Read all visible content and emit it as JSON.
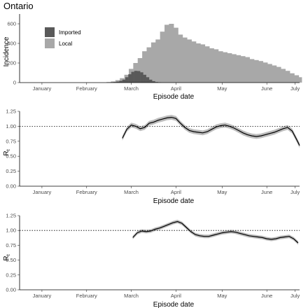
{
  "chart_data": [
    {
      "type": "bar",
      "title": "Ontario",
      "xlabel": "Episode date",
      "ylabel": "Incidence",
      "x_ticks": [
        "January",
        "February",
        "March",
        "April",
        "May",
        "June",
        "July"
      ],
      "ylim": [
        0,
        700
      ],
      "y_ticks": [
        0,
        200,
        400,
        600
      ],
      "grid": false,
      "legend_position": "top-left",
      "x_dates_start": "2020-01-01",
      "x_dates_end": "2020-07-07",
      "series": [
        {
          "name": "Imported",
          "color": "#595959",
          "dates": [
            "2020-03-01",
            "2020-03-03",
            "2020-03-05",
            "2020-03-07",
            "2020-03-09",
            "2020-03-11",
            "2020-03-13",
            "2020-03-15",
            "2020-03-17",
            "2020-03-19",
            "2020-03-21",
            "2020-03-23",
            "2020-03-25",
            "2020-03-27",
            "2020-03-29",
            "2020-03-31",
            "2020-04-02",
            "2020-04-04"
          ],
          "values": [
            2,
            4,
            6,
            10,
            18,
            30,
            55,
            85,
            110,
            120,
            118,
            105,
            80,
            55,
            30,
            15,
            6,
            3
          ]
        },
        {
          "name": "Local",
          "color": "#a8a8a8",
          "dates": [
            "2020-03-01",
            "2020-03-04",
            "2020-03-07",
            "2020-03-10",
            "2020-03-13",
            "2020-03-16",
            "2020-03-19",
            "2020-03-22",
            "2020-03-25",
            "2020-03-28",
            "2020-03-31",
            "2020-04-03",
            "2020-04-06",
            "2020-04-09",
            "2020-04-12",
            "2020-04-15",
            "2020-04-18",
            "2020-04-21",
            "2020-04-24",
            "2020-04-27",
            "2020-04-30",
            "2020-05-03",
            "2020-05-06",
            "2020-05-09",
            "2020-05-12",
            "2020-05-15",
            "2020-05-18",
            "2020-05-21",
            "2020-05-24",
            "2020-05-27",
            "2020-05-30",
            "2020-06-02",
            "2020-06-05",
            "2020-06-08",
            "2020-06-11",
            "2020-06-14",
            "2020-06-17",
            "2020-06-20",
            "2020-06-23",
            "2020-06-26",
            "2020-06-29",
            "2020-07-02",
            "2020-07-05",
            "2020-07-07"
          ],
          "values": [
            5,
            12,
            25,
            45,
            80,
            140,
            200,
            250,
            320,
            360,
            410,
            440,
            520,
            590,
            600,
            560,
            490,
            460,
            440,
            420,
            400,
            390,
            370,
            350,
            340,
            320,
            310,
            300,
            290,
            280,
            270,
            260,
            240,
            230,
            220,
            205,
            190,
            175,
            160,
            140,
            120,
            95,
            75,
            55
          ]
        }
      ]
    },
    {
      "type": "line",
      "xlabel": "Episode date",
      "ylabel": "R",
      "ylabel_sub": "t",
      "x_ticks": [
        "January",
        "February",
        "March",
        "April",
        "May",
        "June",
        "July"
      ],
      "ylim": [
        0,
        1.25
      ],
      "y_ticks": [
        "0.00",
        "0.25",
        "0.50",
        "0.75",
        "1.00",
        "1.25"
      ],
      "reference_line": 1.0,
      "grid": false,
      "series": [
        {
          "dates": [
            "2020-03-10",
            "2020-03-13",
            "2020-03-16",
            "2020-03-19",
            "2020-03-22",
            "2020-03-25",
            "2020-03-28",
            "2020-03-31",
            "2020-04-03",
            "2020-04-06",
            "2020-04-09",
            "2020-04-12",
            "2020-04-15",
            "2020-04-18",
            "2020-04-21",
            "2020-04-24",
            "2020-04-27",
            "2020-04-30",
            "2020-05-03",
            "2020-05-06",
            "2020-05-09",
            "2020-05-12",
            "2020-05-15",
            "2020-05-18",
            "2020-05-21",
            "2020-05-24",
            "2020-05-27",
            "2020-05-30",
            "2020-06-02",
            "2020-06-05",
            "2020-06-08",
            "2020-06-11",
            "2020-06-14",
            "2020-06-17",
            "2020-06-20",
            "2020-06-23",
            "2020-06-26",
            "2020-06-29",
            "2020-07-02",
            "2020-07-05",
            "2020-07-07"
          ],
          "values": [
            0.8,
            0.95,
            1.02,
            1.0,
            0.96,
            0.98,
            1.05,
            1.07,
            1.1,
            1.12,
            1.14,
            1.15,
            1.13,
            1.05,
            0.98,
            0.93,
            0.91,
            0.9,
            0.89,
            0.91,
            0.95,
            0.99,
            1.01,
            1.02,
            1.0,
            0.97,
            0.93,
            0.89,
            0.86,
            0.84,
            0.83,
            0.84,
            0.86,
            0.88,
            0.9,
            0.93,
            0.96,
            0.98,
            0.92,
            0.78,
            0.68
          ],
          "ci_halfwidth": 0.04
        }
      ]
    },
    {
      "type": "line",
      "xlabel": "Episode date",
      "ylabel": "R",
      "ylabel_sub": "t",
      "x_ticks": [
        "January",
        "February",
        "March",
        "April",
        "May",
        "June",
        "July"
      ],
      "ylim": [
        0,
        1.25
      ],
      "y_ticks": [
        "0.00",
        "0.25",
        "0.50",
        "0.75",
        "1.00",
        "1.25"
      ],
      "reference_line": 1.0,
      "grid": false,
      "series": [
        {
          "dates": [
            "2020-03-17",
            "2020-03-20",
            "2020-03-23",
            "2020-03-26",
            "2020-03-29",
            "2020-04-01",
            "2020-04-04",
            "2020-04-07",
            "2020-04-10",
            "2020-04-13",
            "2020-04-16",
            "2020-04-19",
            "2020-04-22",
            "2020-04-25",
            "2020-04-28",
            "2020-05-01",
            "2020-05-04",
            "2020-05-07",
            "2020-05-10",
            "2020-05-13",
            "2020-05-16",
            "2020-05-19",
            "2020-05-22",
            "2020-05-25",
            "2020-05-28",
            "2020-05-31",
            "2020-06-03",
            "2020-06-06",
            "2020-06-09",
            "2020-06-12",
            "2020-06-15",
            "2020-06-18",
            "2020-06-21",
            "2020-06-24",
            "2020-06-27",
            "2020-06-30",
            "2020-07-03",
            "2020-07-06"
          ],
          "values": [
            0.88,
            0.96,
            0.99,
            0.98,
            0.99,
            1.02,
            1.04,
            1.07,
            1.1,
            1.13,
            1.15,
            1.12,
            1.05,
            0.98,
            0.93,
            0.91,
            0.9,
            0.9,
            0.92,
            0.94,
            0.96,
            0.97,
            0.98,
            0.97,
            0.95,
            0.93,
            0.91,
            0.9,
            0.89,
            0.88,
            0.86,
            0.85,
            0.86,
            0.88,
            0.89,
            0.9,
            0.86,
            0.79
          ],
          "ci_halfwidth": 0.03
        }
      ]
    }
  ]
}
